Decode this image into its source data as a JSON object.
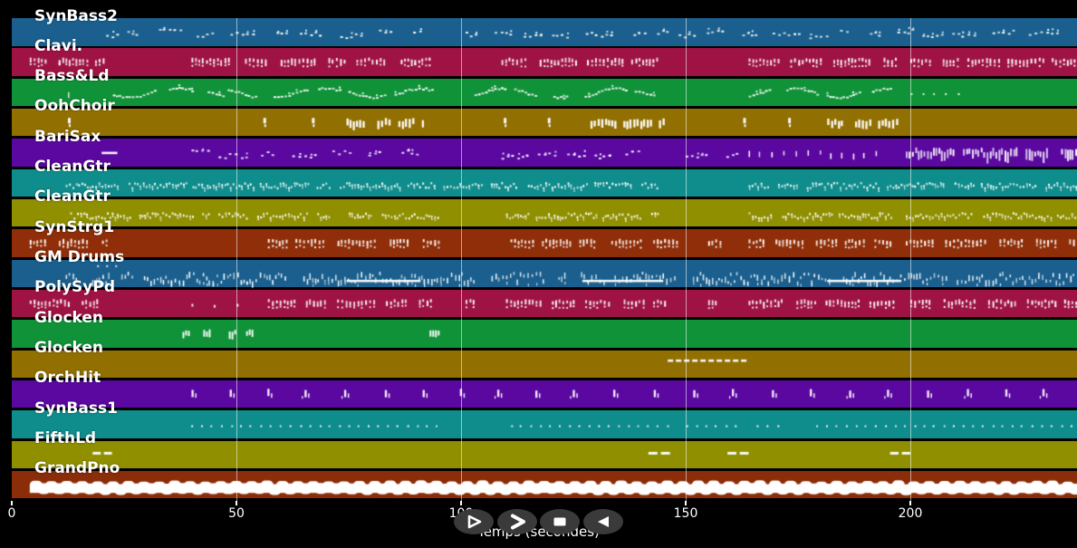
{
  "app": {
    "background": "#000000",
    "button_color": "#3a3a3a",
    "note_color": "#ffffff",
    "grid_color": "rgba(255,255,255,0.55)"
  },
  "axis": {
    "label": "Temps (secondes)",
    "ticks": [
      {
        "value": 0,
        "label": "0"
      },
      {
        "value": 50,
        "label": "50"
      },
      {
        "value": 100,
        "label": "100"
      },
      {
        "value": 150,
        "label": "150"
      },
      {
        "value": 200,
        "label": "200"
      }
    ],
    "gridlines": [
      50,
      100,
      150,
      200
    ],
    "max_value": 237
  },
  "controls": [
    {
      "name": "play-button",
      "icon": "play-icon"
    },
    {
      "name": "forward-button",
      "icon": "forward-icon"
    },
    {
      "name": "stop-button",
      "icon": "stop-icon"
    },
    {
      "name": "rewind-button",
      "icon": "rewind-icon"
    }
  ],
  "tracks": [
    {
      "name": "SynBass2",
      "color": "#1a5f8e",
      "style": "clusters",
      "segments": [
        [
          21,
          91
        ],
        [
          101,
          186
        ],
        [
          191,
          237
        ]
      ]
    },
    {
      "name": "Clavi.",
      "color": "#9e1343",
      "style": "chords",
      "segments": [
        [
          4,
          21
        ],
        [
          40,
          95
        ],
        [
          109,
          144
        ],
        [
          164,
          197
        ],
        [
          200,
          237
        ]
      ]
    },
    {
      "name": "Bass&Ld",
      "color": "#109238",
      "style": "wave",
      "step": 13,
      "segments": [
        [
          12.5,
          14,
          "ticks"
        ],
        [
          22.5,
          47
        ],
        [
          48,
          94
        ],
        [
          103,
          145
        ],
        [
          164,
          197
        ],
        [
          200,
          211,
          "dots"
        ]
      ]
    },
    {
      "name": "OohChoir",
      "color": "#916f00",
      "style": "blocks",
      "segments": [
        [
          12.5,
          13.5
        ],
        [
          56,
          57
        ],
        [
          66.8,
          67.8
        ],
        [
          74.5,
          92
        ],
        [
          109.5,
          110.5
        ],
        [
          119.3,
          120.3
        ],
        [
          128.8,
          145
        ],
        [
          162.8,
          163.8
        ],
        [
          172.8,
          173.8
        ],
        [
          181.5,
          197.5
        ]
      ]
    },
    {
      "name": "BariSax",
      "color": "#5a08a0",
      "style": "clusters",
      "segments": [
        [
          20,
          23.5,
          "dash"
        ],
        [
          40,
          92
        ],
        [
          109,
          143
        ],
        [
          150,
          162
        ],
        [
          164,
          194,
          "ticks"
        ],
        [
          199,
          237,
          "denseTall"
        ]
      ]
    },
    {
      "name": "CleanGtr",
      "color": "#0f8c8c",
      "style": "dense",
      "segments": [
        [
          12,
          24
        ],
        [
          26,
          71
        ],
        [
          73,
          144
        ],
        [
          164,
          237
        ]
      ]
    },
    {
      "name": "CleanGtr",
      "color": "#8f8f00",
      "style": "dense",
      "segments": [
        [
          13,
          44
        ],
        [
          46,
          71
        ],
        [
          75,
          97
        ],
        [
          110,
          144
        ],
        [
          164,
          196
        ],
        [
          199,
          237
        ]
      ]
    },
    {
      "name": "SynStrg1",
      "color": "#8f2e08",
      "style": "chords",
      "segments": [
        [
          4,
          21
        ],
        [
          57,
          95
        ],
        [
          111,
          148
        ],
        [
          155,
          158
        ],
        [
          164,
          196
        ],
        [
          199,
          237
        ]
      ]
    },
    {
      "name": "GM Drums",
      "color": "#1a5f8e",
      "style": "drums",
      "segments": [
        [
          12,
          237
        ],
        [
          19,
          25,
          "topdots"
        ],
        [
          74.5,
          91,
          "dash",
          8
        ],
        [
          127,
          145,
          "dash",
          8
        ],
        [
          181.5,
          198,
          "dash",
          8
        ]
      ]
    },
    {
      "name": "PolySyPd",
      "color": "#9e1343",
      "style": "chords",
      "segments": [
        [
          4,
          19
        ],
        [
          40,
          55,
          "dotsS"
        ],
        [
          57,
          93.5
        ],
        [
          101,
          103
        ],
        [
          110,
          146
        ],
        [
          155,
          157
        ],
        [
          164,
          197
        ],
        [
          200,
          237
        ]
      ]
    },
    {
      "name": "Glocken",
      "color": "#109238",
      "style": "glock",
      "segments": [
        [
          38,
          56
        ],
        [
          93,
          94
        ]
      ]
    },
    {
      "name": "Glocken",
      "color": "#916f00",
      "style": "dotline",
      "segments": [
        [
          146,
          162.5
        ]
      ]
    },
    {
      "name": "OrchHit",
      "color": "#5a08a0",
      "style": "pairs",
      "segments": [
        [
          40,
          237
        ]
      ]
    },
    {
      "name": "SynBass1",
      "color": "#0f8c8c",
      "style": "dots",
      "step": 10.8,
      "segments": [
        [
          40,
          55.5
        ],
        [
          57.5,
          95
        ],
        [
          111,
          148
        ],
        [
          150,
          161.5
        ],
        [
          166,
          171
        ],
        [
          179,
          237
        ]
      ]
    },
    {
      "name": "FifthLd",
      "color": "#8f8f00",
      "style": "dashpair",
      "segments": [
        [
          18,
          22.3
        ],
        [
          141.7,
          146.5
        ],
        [
          159.3,
          164
        ],
        [
          195.5,
          200
        ]
      ]
    },
    {
      "name": "GrandPno",
      "color": "#8a2d08",
      "style": "ribbon",
      "segments": [
        [
          4,
          237
        ]
      ]
    }
  ]
}
